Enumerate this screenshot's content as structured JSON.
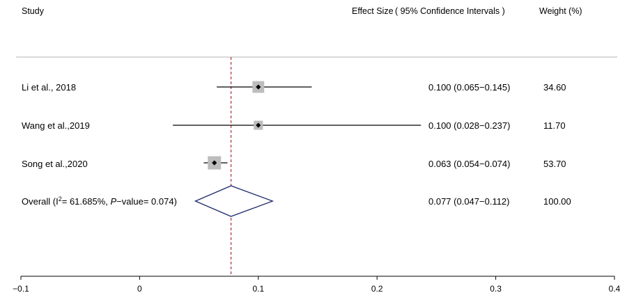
{
  "chart_data": {
    "type": "forest",
    "headers": {
      "study": "Study",
      "effect": "Effect Size ( 95% Confidence Intervals )",
      "weight": "Weight (%)"
    },
    "studies": [
      {
        "name": "Li et al., 2018",
        "estimate": 0.1,
        "lower": 0.065,
        "upper": 0.145,
        "ci_text": "0.100 (0.065−0.145)",
        "weight": "34.60"
      },
      {
        "name": "Wang et al.,2019",
        "estimate": 0.1,
        "lower": 0.028,
        "upper": 0.237,
        "ci_text": "0.100 (0.028−0.237)",
        "weight": "11.70"
      },
      {
        "name": "Song et al.,2020",
        "estimate": 0.063,
        "lower": 0.054,
        "upper": 0.074,
        "ci_text": "0.063 (0.054−0.074)",
        "weight": "53.70"
      }
    ],
    "overall": {
      "label_prefix": "Overall  (I",
      "label_sup": "2",
      "label_mid": "= 61.685%, ",
      "label_p": "P",
      "label_end": "−value= 0.074)",
      "estimate": 0.077,
      "lower": 0.047,
      "upper": 0.112,
      "ci_text": "0.077 (0.047−0.112)",
      "weight": "100.00"
    },
    "reference_line": 0.077,
    "xlim": [
      -0.1,
      0.4
    ],
    "x_ticks": [
      -0.1,
      0,
      0.1,
      0.2,
      0.3,
      0.4
    ],
    "x_tick_labels": [
      "−0.1",
      "0",
      "0.1",
      "0.2",
      "0.3",
      "0.4"
    ],
    "colors": {
      "box": "#bdbdbd",
      "diamond": "#1f2a6b",
      "ref_line": "#a8323e",
      "separator": "#b0b0b0"
    }
  }
}
